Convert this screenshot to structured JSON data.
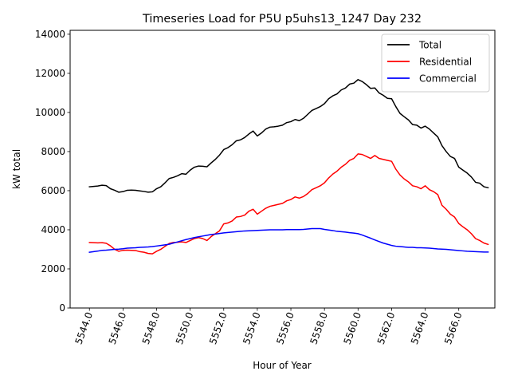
{
  "chart_data": {
    "type": "line",
    "title": "Timeseries Load for P5U p5uhs13_1247  Day 232",
    "xlabel": "Hour of Year",
    "ylabel": "kW total",
    "xlim": [
      5542.85,
      5568.15
    ],
    "ylim": [
      0,
      14200
    ],
    "xticks": [
      5544,
      5546,
      5548,
      5550,
      5552,
      5554,
      5556,
      5558,
      5560,
      5562,
      5564,
      5566
    ],
    "xtick_labels": [
      "5544.0",
      "5546.0",
      "5548.0",
      "5550.0",
      "5552.0",
      "5554.0",
      "5556.0",
      "5558.0",
      "5560.0",
      "5562.0",
      "5564.0",
      "5566.0"
    ],
    "yticks": [
      0,
      2000,
      4000,
      6000,
      8000,
      10000,
      12000,
      14000
    ],
    "ytick_labels": [
      "0",
      "2000",
      "4000",
      "6000",
      "8000",
      "10000",
      "12000",
      "14000"
    ],
    "legend_position": "upper-right",
    "x_start": 5544.0,
    "x_step": 0.25,
    "series": [
      {
        "name": "Total",
        "color": "#000000",
        "values": [
          6200,
          6220,
          6240,
          6280,
          6260,
          6100,
          6020,
          5920,
          5950,
          6020,
          6030,
          6020,
          5990,
          5960,
          5920,
          5940,
          6100,
          6200,
          6400,
          6620,
          6680,
          6760,
          6870,
          6840,
          7050,
          7200,
          7260,
          7250,
          7220,
          7420,
          7600,
          7820,
          8100,
          8200,
          8350,
          8550,
          8600,
          8720,
          8900,
          9050,
          8800,
          8950,
          9150,
          9250,
          9270,
          9300,
          9350,
          9480,
          9530,
          9640,
          9580,
          9700,
          9900,
          10100,
          10200,
          10300,
          10450,
          10700,
          10850,
          10950,
          11150,
          11250,
          11450,
          11500,
          11680,
          11580,
          11420,
          11230,
          11250,
          11000,
          10880,
          10720,
          10700,
          10300,
          9950,
          9780,
          9620,
          9380,
          9350,
          9200,
          9300,
          9150,
          8950,
          8750,
          8300,
          8000,
          7750,
          7650,
          7200,
          7050,
          6900,
          6700,
          6430,
          6380,
          6200,
          6150
        ]
      },
      {
        "name": "Residential",
        "color": "#ff0000",
        "values": [
          3350,
          3340,
          3330,
          3340,
          3310,
          3180,
          3000,
          2900,
          2950,
          2960,
          2950,
          2940,
          2880,
          2850,
          2790,
          2770,
          2900,
          3000,
          3150,
          3300,
          3350,
          3360,
          3380,
          3350,
          3450,
          3550,
          3600,
          3550,
          3450,
          3650,
          3800,
          3950,
          4300,
          4350,
          4450,
          4650,
          4680,
          4750,
          4950,
          5050,
          4800,
          4950,
          5100,
          5200,
          5250,
          5300,
          5350,
          5480,
          5550,
          5680,
          5620,
          5700,
          5850,
          6050,
          6150,
          6250,
          6400,
          6650,
          6850,
          7000,
          7200,
          7350,
          7550,
          7650,
          7880,
          7850,
          7750,
          7650,
          7800,
          7650,
          7600,
          7550,
          7500,
          7100,
          6800,
          6600,
          6450,
          6250,
          6200,
          6100,
          6250,
          6050,
          5950,
          5800,
          5250,
          5050,
          4800,
          4650,
          4320,
          4150,
          4000,
          3800,
          3550,
          3450,
          3320,
          3250
        ]
      },
      {
        "name": "Commercial",
        "color": "#0000ff",
        "values": [
          2850,
          2880,
          2910,
          2950,
          2960,
          2980,
          3000,
          3010,
          3030,
          3060,
          3070,
          3080,
          3100,
          3110,
          3120,
          3140,
          3170,
          3200,
          3230,
          3260,
          3320,
          3380,
          3440,
          3500,
          3550,
          3600,
          3640,
          3680,
          3720,
          3760,
          3780,
          3810,
          3840,
          3860,
          3880,
          3900,
          3920,
          3940,
          3950,
          3960,
          3970,
          3980,
          3990,
          4000,
          4000,
          4000,
          4000,
          4010,
          4010,
          4010,
          4010,
          4020,
          4040,
          4060,
          4060,
          4060,
          4020,
          3990,
          3960,
          3920,
          3900,
          3880,
          3850,
          3830,
          3800,
          3730,
          3650,
          3570,
          3480,
          3400,
          3320,
          3260,
          3200,
          3160,
          3140,
          3120,
          3100,
          3100,
          3080,
          3080,
          3070,
          3060,
          3040,
          3020,
          3010,
          3000,
          2980,
          2960,
          2940,
          2920,
          2900,
          2890,
          2880,
          2870,
          2860,
          2860
        ]
      }
    ]
  }
}
